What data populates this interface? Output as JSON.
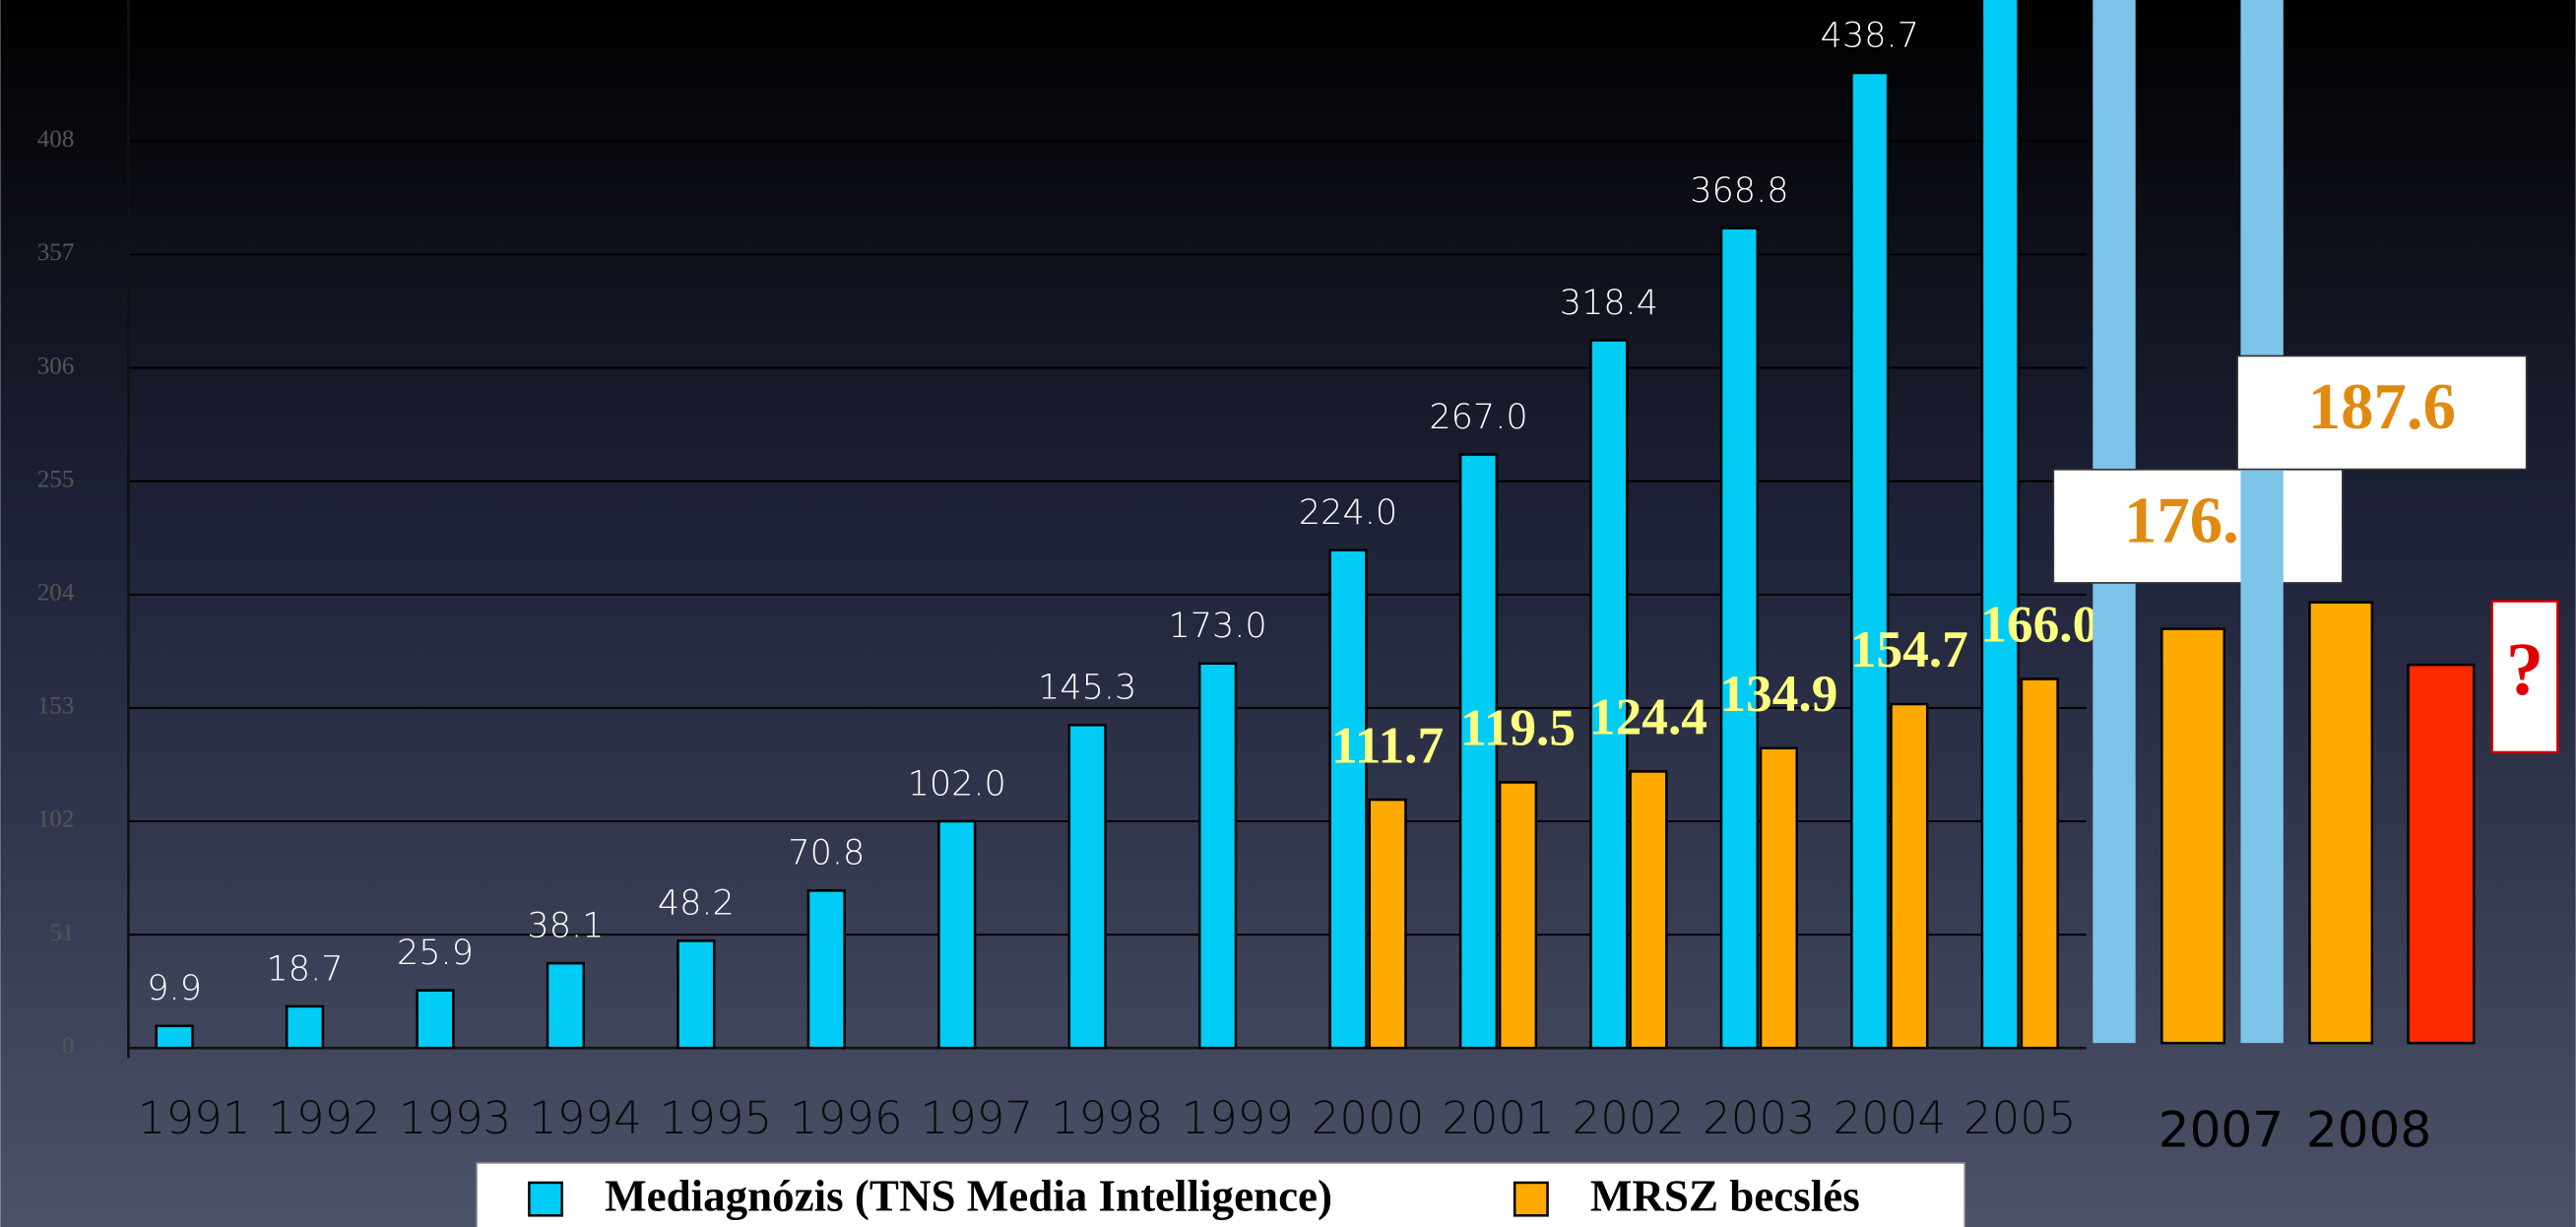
{
  "chart_data": [
    {
      "type": "bar",
      "categories": [
        "1991",
        "1992",
        "1993",
        "1994",
        "1995",
        "1996",
        "1997",
        "1998",
        "1999",
        "2000",
        "2001",
        "2002",
        "2003",
        "2004",
        "2005"
      ],
      "series": [
        {
          "name": "Mediagnózis (TNS Media Intelligence)",
          "color": "#00ccf5",
          "values": [
            9.9,
            18.7,
            25.9,
            38.1,
            48.2,
            70.8,
            102.0,
            145.3,
            173.0,
            224.0,
            267.0,
            318.4,
            368.8,
            438.7,
            490
          ],
          "value_labels": [
            "9.9",
            "18.7",
            "25.9",
            "38.1",
            "48.2",
            "70.8",
            "102.0",
            "145.3",
            "173.0",
            "224.0",
            "267.0",
            "318.4",
            "368.8",
            "438.7",
            null
          ]
        },
        {
          "name": "MRSZ becslés",
          "color": "#ffaa00",
          "values": [
            null,
            null,
            null,
            null,
            null,
            null,
            null,
            null,
            null,
            111.7,
            119.5,
            124.4,
            134.9,
            154.7,
            166.0
          ],
          "value_labels": [
            null,
            null,
            null,
            null,
            null,
            null,
            null,
            null,
            null,
            "111.7",
            "119.5",
            "124.4",
            "134.9",
            "154.7",
            "166.0"
          ]
        }
      ],
      "ylim": [
        0,
        471.5
      ],
      "yticks": [
        0,
        51,
        102,
        153,
        204,
        255,
        306,
        357,
        408
      ],
      "grid": true,
      "legend": "bottom"
    },
    {
      "type": "bar",
      "categories": [
        "2007",
        "2008",
        null
      ],
      "series": [
        {
          "color": "#7cc4e8",
          "values": [
            460,
            460,
            null
          ]
        },
        {
          "color": "#ffaa00",
          "values": [
            176.3,
            187.6,
            null
          ]
        },
        {
          "color": "#ff2a00",
          "values": [
            null,
            null,
            161
          ]
        }
      ],
      "ylim": [
        0,
        444
      ],
      "annotation": "?"
    }
  ]
}
